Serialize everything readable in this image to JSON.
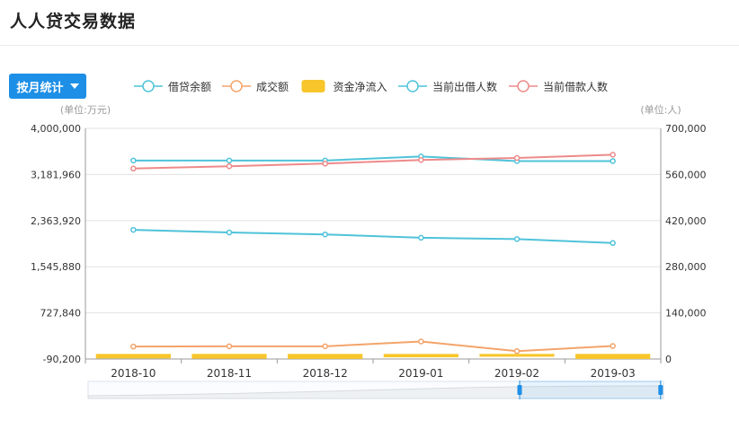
{
  "page": {
    "title": "人人贷交易数据"
  },
  "controls": {
    "period_button_label": "按月统计"
  },
  "chart_data": {
    "type": "line",
    "categories": [
      "2018-10",
      "2018-11",
      "2018-12",
      "2019-01",
      "2019-02",
      "2019-03"
    ],
    "left_axis": {
      "unit_label": "(单位:万元)",
      "ticks": [
        -90200,
        727840,
        1545880,
        2363920,
        3181960,
        4000000
      ],
      "ylim": [
        -90200,
        4000000
      ]
    },
    "right_axis": {
      "unit_label": "(单位:人)",
      "ticks": [
        0,
        140000,
        280000,
        420000,
        560000,
        700000
      ],
      "ylim": [
        0,
        700000
      ]
    },
    "series": [
      {
        "name": "借贷余额",
        "type": "line",
        "axis": "left",
        "color": "#4fc3d9",
        "values": [
          3430000,
          3430000,
          3430000,
          3500000,
          3420000,
          3420000
        ]
      },
      {
        "name": "成交额",
        "type": "line",
        "axis": "left",
        "color": "#f3a46a",
        "values": [
          130000,
          135000,
          135000,
          220000,
          50000,
          140000
        ]
      },
      {
        "name": "资金净流入",
        "type": "bar",
        "axis": "left",
        "color": "#f8c62b",
        "values": [
          -80000,
          -85000,
          -88000,
          -60000,
          -50000,
          -90000
        ]
      },
      {
        "name": "当前出借人数",
        "type": "line",
        "axis": "right",
        "color": "#4fc3d9",
        "values": [
          392000,
          384000,
          378000,
          368000,
          364000,
          352000
        ]
      },
      {
        "name": "当前借款人数",
        "type": "line",
        "axis": "right",
        "color": "#ee8a8a",
        "values": [
          578000,
          585000,
          593000,
          604000,
          610000,
          620000
        ]
      }
    ],
    "legend_position": "top-center",
    "grid": true,
    "data_zoom": {
      "start_fraction": 0.0,
      "end_fraction": 1.0
    }
  }
}
